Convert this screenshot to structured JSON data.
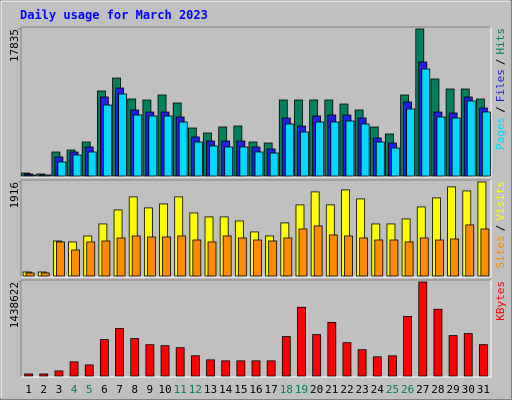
{
  "chart_data": {
    "type": "bar",
    "title": "Daily usage for March 2023",
    "categories": [
      "1",
      "2",
      "3",
      "4",
      "5",
      "6",
      "7",
      "8",
      "9",
      "10",
      "11",
      "12",
      "13",
      "14",
      "15",
      "16",
      "17",
      "18",
      "19",
      "20",
      "21",
      "22",
      "23",
      "24",
      "25",
      "26",
      "27",
      "28",
      "29",
      "30",
      "31"
    ],
    "category_colors": [
      "#000000",
      "#000000",
      "#000000",
      "#00805c",
      "#00805c",
      "#000000",
      "#000000",
      "#000000",
      "#000000",
      "#000000",
      "#00805c",
      "#00805c",
      "#000000",
      "#000000",
      "#000000",
      "#000000",
      "#000000",
      "#00805c",
      "#00805c",
      "#000000",
      "#000000",
      "#000000",
      "#000000",
      "#000000",
      "#00805c",
      "#00805c",
      "#000000",
      "#000000",
      "#000000",
      "#000000",
      "#000000"
    ],
    "legend_separator": "/",
    "panels": [
      {
        "ylim": [
          0,
          17835
        ],
        "yticks": [
          17835
        ],
        "series": [
          {
            "name": "Hits",
            "color": "#00805c",
            "values": [
              364,
              243,
              2911,
              3154,
              4124,
              10311,
              11887,
              9340,
              9219,
              9825,
              8855,
              5822,
              5216,
              5944,
              6065,
              4124,
              4003,
              9219,
              9219,
              9219,
              9219,
              8734,
              8006,
              5944,
              5095,
              9825,
              17835,
              11766,
              10553,
              10553,
              9340
            ]
          },
          {
            "name": "Files",
            "color": "#2020e0",
            "values": [
              243,
              121,
              2305,
              2911,
              3518,
              9583,
              10674,
              8006,
              7763,
              7763,
              7157,
              4731,
              4246,
              4246,
              4246,
              3518,
              3275,
              7035,
              6065,
              7278,
              7399,
              7399,
              7035,
              4609,
              4003,
              8976,
              13828,
              7763,
              7642,
              9583,
              8248
            ]
          },
          {
            "name": "Pages",
            "color": "#00d8ff",
            "values": [
              121,
              121,
              1698,
              2547,
              2911,
              8612,
              9947,
              7399,
              7278,
              7278,
              6550,
              4124,
              3639,
              3518,
              3518,
              2911,
              2790,
              6308,
              5337,
              6550,
              6550,
              6672,
              6308,
              4124,
              3396,
              8127,
              12979,
              7157,
              7035,
              9098,
              7763
            ]
          }
        ]
      },
      {
        "ylim": [
          0,
          1916
        ],
        "yticks": [
          1916
        ],
        "series": [
          {
            "name": "Visits",
            "color": "#ffff00",
            "values": [
              82,
              82,
              714,
              694,
              816,
              1061,
              1347,
              1612,
              1388,
              1469,
              1612,
              1285,
              1204,
              1204,
              1122,
              898,
              816,
              1082,
              1449,
              1714,
              1449,
              1755,
              1571,
              1061,
              1061,
              1163,
              1408,
              1592,
              1816,
              1734,
              1916
            ]
          },
          {
            "name": "Sites",
            "color": "#ff8c00",
            "values": [
              61,
              61,
              694,
              530,
              694,
              714,
              775,
              816,
              796,
              796,
              816,
              734,
              694,
              816,
              775,
              734,
              714,
              775,
              959,
              1020,
              836,
              816,
              775,
              734,
              734,
              694,
              775,
              734,
              755,
              1041,
              959
            ]
          }
        ]
      },
      {
        "ylim": [
          0,
          1438622
        ],
        "yticks": [
          1438622
        ],
        "series": [
          {
            "name": "KBytes",
            "color": "#ff0000",
            "values": [
              30938,
              30938,
              77345,
              216566,
              170159,
              556884,
              727043,
              572353,
              479539,
              464070,
              433132,
              309380,
              247504,
              232035,
              232035,
              232035,
              232035,
              603291,
              1051892,
              634229,
              819857,
              510477,
              402194,
              293911,
              309380,
              912671,
              1438622,
              1020954,
              618760,
              649698,
              479539
            ]
          }
        ]
      }
    ]
  }
}
